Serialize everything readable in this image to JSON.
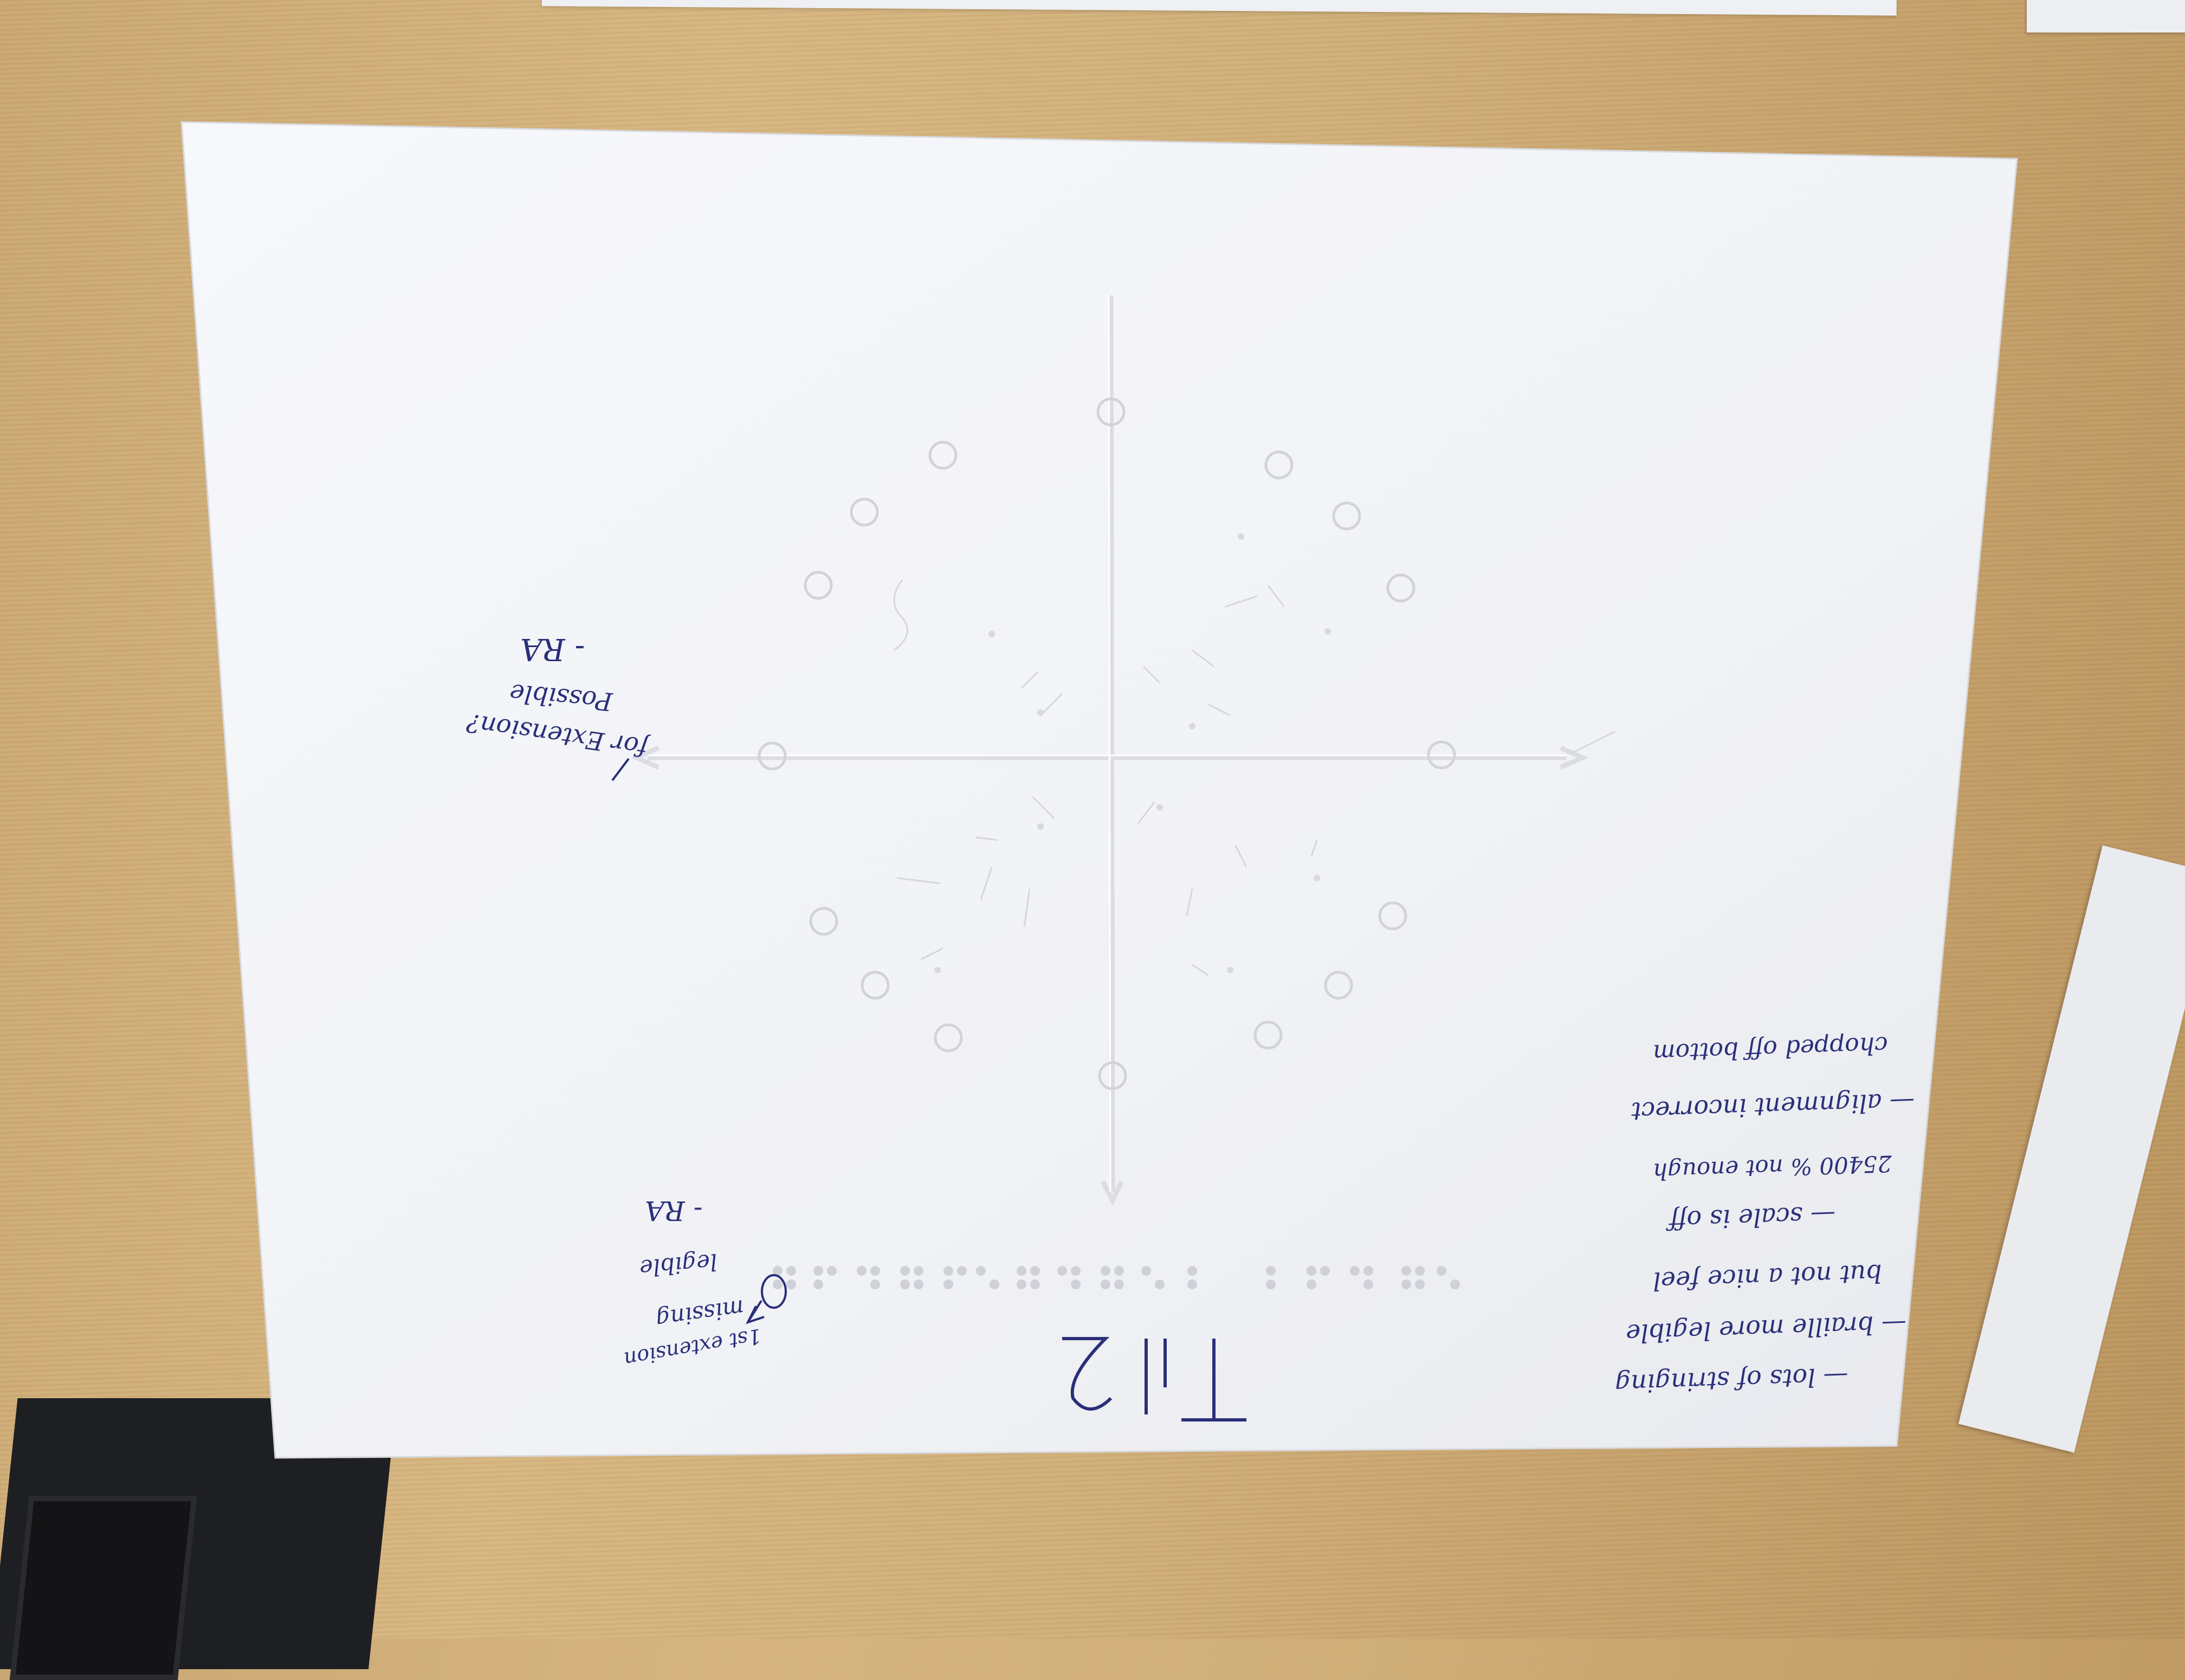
{
  "scene": {
    "title_handwritten": "Trial 2",
    "margin_note_left": {
      "lines": [
        "Possible",
        "for Extension?",
        "- RA"
      ]
    },
    "margin_note_bottom": {
      "lines": [
        "1st extension",
        "missing",
        "legible",
        "- RA"
      ]
    },
    "feedback_notes": [
      "— lots of stringing",
      "— braille more legible",
      "but not a nice feel",
      "— scale is off",
      "25400 % not enough",
      "— alignment incorrect",
      "chopped off bottom"
    ]
  },
  "colors": {
    "ink": "#2a2f7a",
    "paper": "#f3f4f7",
    "table": "#cfae78"
  }
}
